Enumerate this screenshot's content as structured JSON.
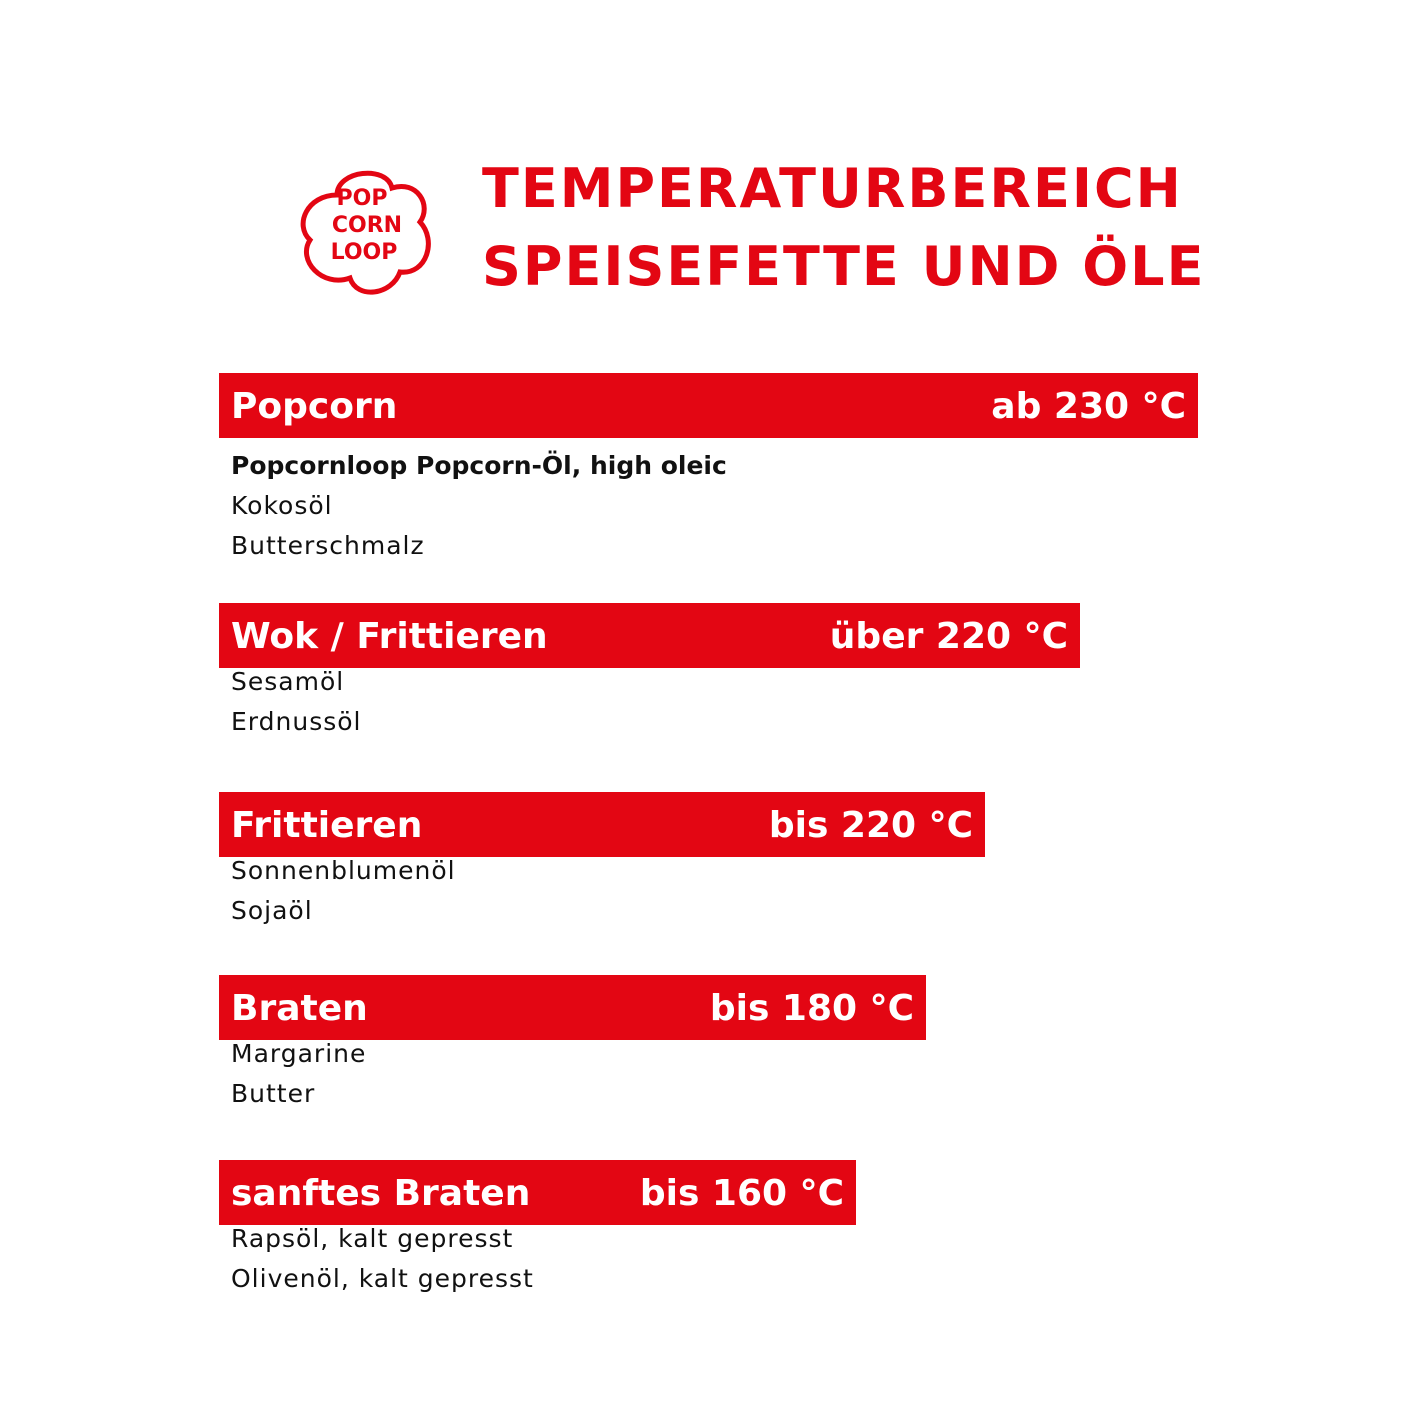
{
  "header": {
    "logo": [
      "POP",
      "CORN",
      "LOOP"
    ],
    "title": [
      "TEMPERATURBEREICH",
      "SPEISEFETTE UND ÖLE"
    ]
  },
  "sections": [
    {
      "label": "Popcorn",
      "temperature": "ab 230 °C",
      "items": [
        "Popcornloop Popcorn-Öl, high oleic",
        "Kokosöl",
        "Butterschmalz"
      ]
    },
    {
      "label": "Wok / Frittieren",
      "temperature": "über 220 °C",
      "items": [
        "Sesamöl",
        "Erdnussöl"
      ]
    },
    {
      "label": "Frittieren",
      "temperature": "bis 220 °C",
      "items": [
        "Sonnenblumenöl",
        "Sojaöl"
      ]
    },
    {
      "label": "Braten",
      "temperature": "bis 180 °C",
      "items": [
        "Margarine",
        "Butter"
      ]
    },
    {
      "label": "sanftes Braten",
      "temperature": "bis 160 °C",
      "items": [
        "Rapsöl, kalt gepresst",
        "Olivenöl, kalt gepresst"
      ]
    }
  ]
}
